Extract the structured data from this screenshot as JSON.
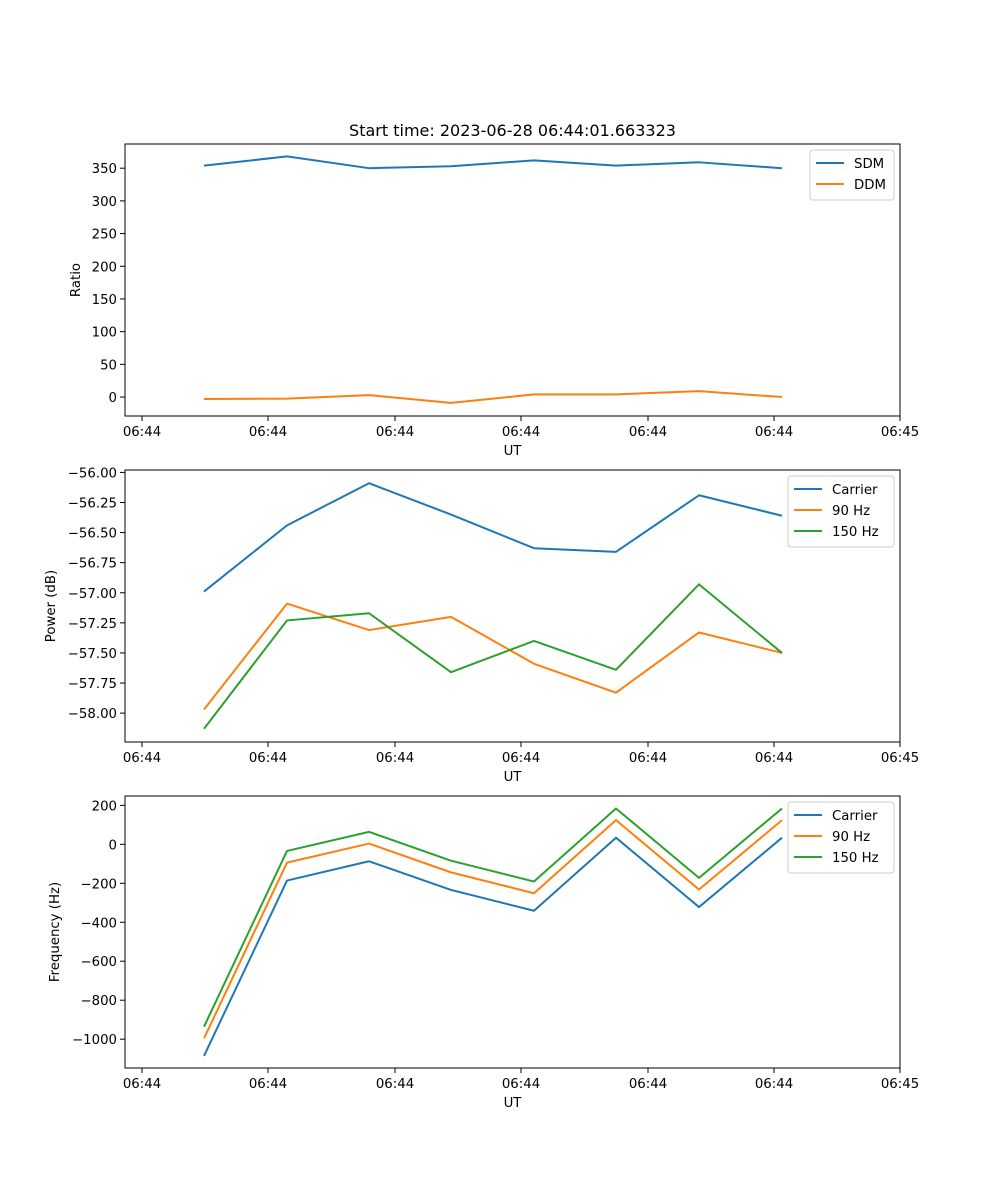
{
  "figure_title": "Start time: 2023-06-28 06:44:01.663323",
  "chart_data": [
    {
      "type": "line",
      "title": "Start time: 2023-06-28 06:44:01.663323",
      "xlabel": "UT",
      "ylabel": "Ratio",
      "x_ticks": [
        "06:44",
        "06:44",
        "06:44",
        "06:44",
        "06:44",
        "06:44",
        "06:45"
      ],
      "y_ticks": [
        "0",
        "50",
        "100",
        "150",
        "200",
        "250",
        "300",
        "350"
      ],
      "ylim": [
        -29,
        387
      ],
      "grid": false,
      "legend": "top-right",
      "series": [
        {
          "name": "SDM",
          "color": "#1f77b4",
          "values": [
            354,
            368,
            350,
            353,
            362,
            354,
            359,
            350
          ]
        },
        {
          "name": "DDM",
          "color": "#ff7f0e",
          "values": [
            -3,
            -2.5,
            3,
            -9,
            4,
            4,
            9,
            0
          ]
        }
      ]
    },
    {
      "type": "line",
      "xlabel": "UT",
      "ylabel": "Power (dB)",
      "x_ticks": [
        "06:44",
        "06:44",
        "06:44",
        "06:44",
        "06:44",
        "06:44",
        "06:45"
      ],
      "y_ticks": [
        "−56.00",
        "−56.25",
        "−56.50",
        "−56.75",
        "−57.00",
        "−57.25",
        "−57.50",
        "−57.75",
        "−58.00"
      ],
      "ylim": [
        -58.24,
        -55.98
      ],
      "grid": false,
      "legend": "top-right",
      "series": [
        {
          "name": "Carrier",
          "color": "#1f77b4",
          "values": [
            -56.99,
            -56.44,
            -56.09,
            -56.35,
            -56.63,
            -56.66,
            -56.19,
            -56.36
          ]
        },
        {
          "name": "90 Hz",
          "color": "#ff7f0e",
          "values": [
            -57.97,
            -57.09,
            -57.31,
            -57.2,
            -57.59,
            -57.83,
            -57.33,
            -57.5
          ]
        },
        {
          "name": "150 Hz",
          "color": "#2ca02c",
          "values": [
            -58.13,
            -57.23,
            -57.17,
            -57.66,
            -57.4,
            -57.64,
            -56.93,
            -57.5
          ]
        }
      ]
    },
    {
      "type": "line",
      "xlabel": "UT",
      "ylabel": "Frequency (Hz)",
      "x_ticks": [
        "06:44",
        "06:44",
        "06:44",
        "06:44",
        "06:44",
        "06:44",
        "06:45"
      ],
      "y_ticks": [
        "−1000",
        "−800",
        "−600",
        "−400",
        "−200",
        "0",
        "200"
      ],
      "ylim": [
        -1148,
        248
      ],
      "grid": false,
      "legend": "top-right",
      "series": [
        {
          "name": "Carrier",
          "color": "#1f77b4",
          "values": [
            -1086,
            -186,
            -87,
            -234,
            -341,
            34,
            -322,
            34
          ]
        },
        {
          "name": "90 Hz",
          "color": "#ff7f0e",
          "values": [
            -996,
            -94,
            4,
            -144,
            -251,
            124,
            -232,
            124
          ]
        },
        {
          "name": "150 Hz",
          "color": "#2ca02c",
          "values": [
            -936,
            -34,
            64,
            -84,
            -191,
            184,
            -172,
            184
          ]
        }
      ]
    }
  ]
}
